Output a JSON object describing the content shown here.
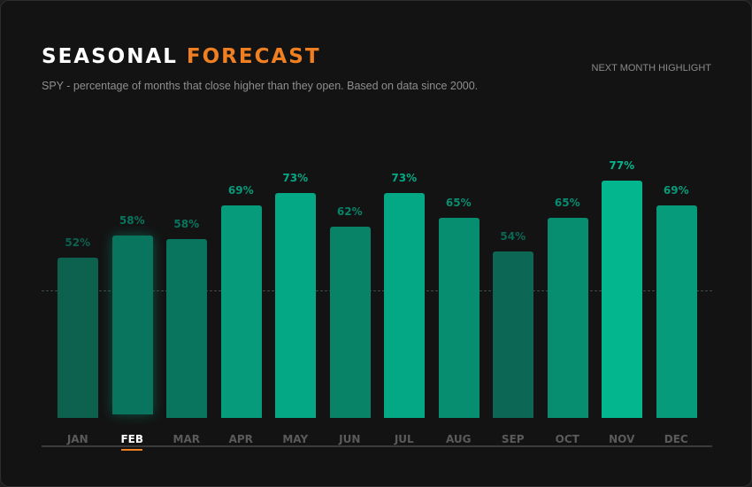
{
  "header": {
    "title_main": "SEASONAL",
    "title_accent": "FORECAST",
    "subtitle": "SPY - percentage of months that close higher than they open. Based on data since 2000.",
    "highlight_label": "NEXT MONTH HIGHLIGHT"
  },
  "colors": {
    "accent": "#f07f22",
    "bar_low": "#0d5a4a",
    "bar_high": "#03b68e",
    "background": "#131313"
  },
  "chart_data": {
    "type": "bar",
    "categories": [
      "JAN",
      "FEB",
      "MAR",
      "APR",
      "MAY",
      "JUN",
      "JUL",
      "AUG",
      "SEP",
      "OCT",
      "NOV",
      "DEC"
    ],
    "values": [
      52,
      58,
      58,
      69,
      73,
      62,
      73,
      65,
      54,
      65,
      77,
      69
    ],
    "value_labels": [
      "52%",
      "58%",
      "58%",
      "69%",
      "73%",
      "62%",
      "73%",
      "65%",
      "54%",
      "65%",
      "77%",
      "69%"
    ],
    "unit": "%",
    "highlighted": "FEB",
    "ylim": [
      0,
      100
    ],
    "grid": false
  }
}
